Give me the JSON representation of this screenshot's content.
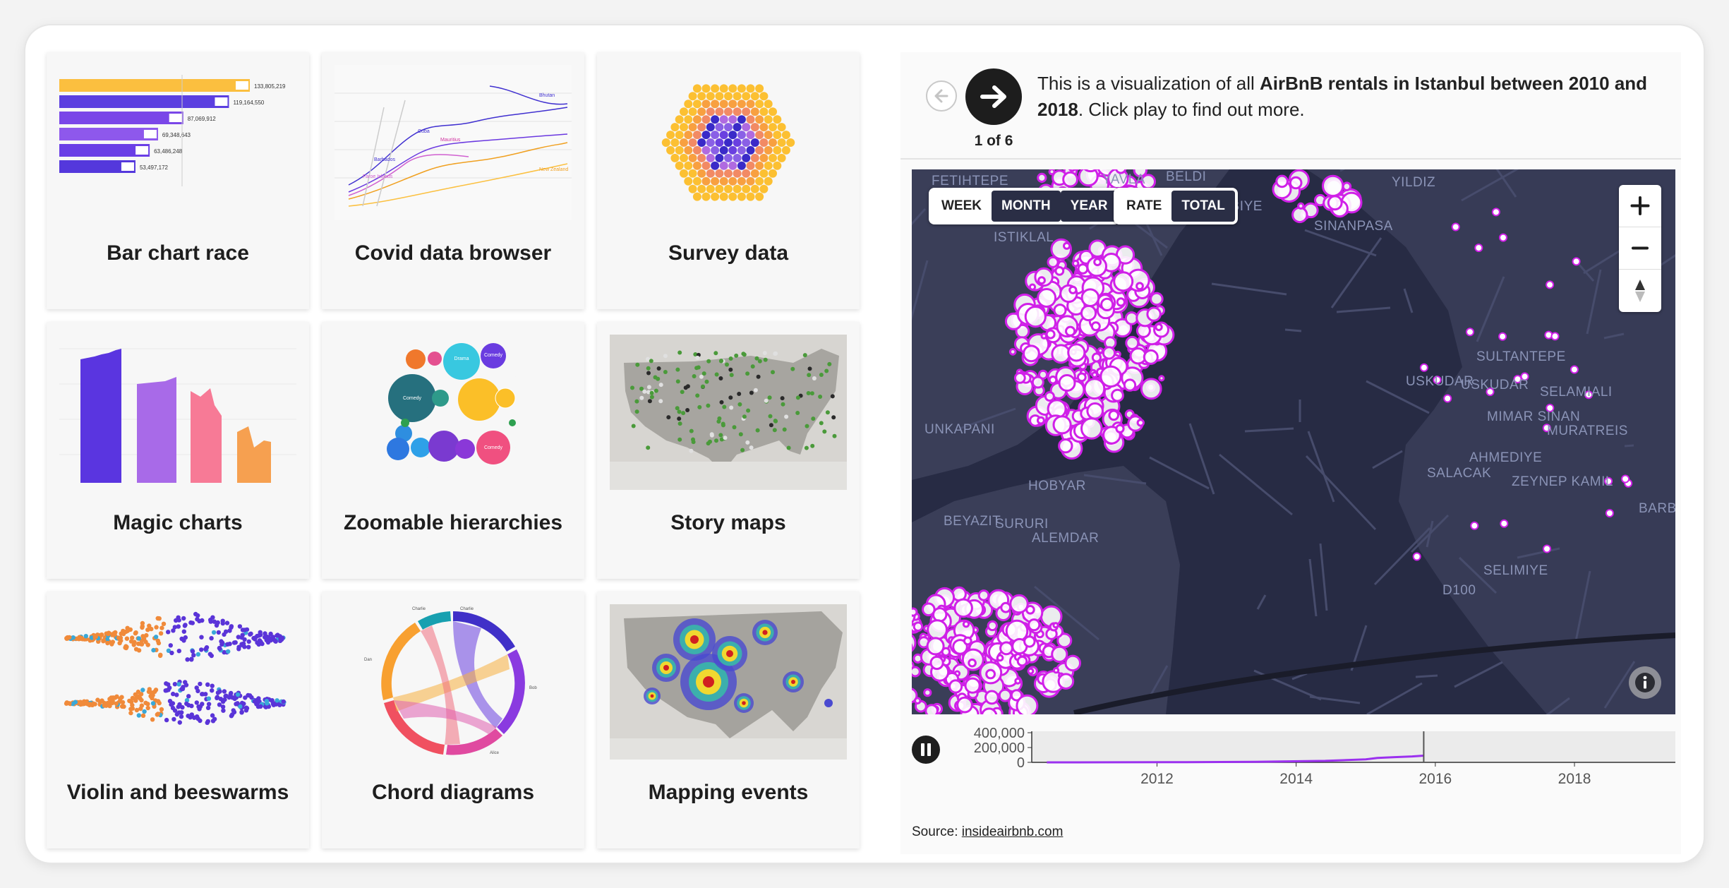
{
  "gallery": [
    {
      "title": "Bar chart race"
    },
    {
      "title": "Covid data browser"
    },
    {
      "title": "Survey data"
    },
    {
      "title": "Magic charts"
    },
    {
      "title": "Zoomable hierarchies"
    },
    {
      "title": "Story maps"
    },
    {
      "title": "Violin and beeswarms"
    },
    {
      "title": "Chord diagrams"
    },
    {
      "title": "Mapping events"
    }
  ],
  "bar_race": {
    "values": [
      133805219,
      119164550,
      87069912,
      69348643,
      63486248,
      53497172
    ],
    "labels": [
      "133,805,219",
      "119,164,550",
      "87,069,912",
      "69,348,643",
      "63,486,248",
      "53,497,172"
    ],
    "colors": [
      "#fbbf3f",
      "#5b3fe0",
      "#7a46e8",
      "#8e58ec",
      "#6a3fe6",
      "#5438dc"
    ]
  },
  "covid_labels": [
    "Cuba",
    "Mauritius",
    "Bhutan",
    "Barbados",
    "Faroe Islands",
    "New Zealand"
  ],
  "bubble_labels": [
    "Drama",
    "Comedy",
    "Comedy",
    "Comedy"
  ],
  "chord_labels": [
    "Charlie",
    "Charlie",
    "Bob",
    "Alice",
    "Dan"
  ],
  "story": {
    "counter": "1 of 6",
    "intro_before": "This is a visualization of all ",
    "intro_bold": "AirBnB rentals in Istanbul between 2010 and 2018",
    "intro_after": ". Click play to find out more."
  },
  "map": {
    "period_options": [
      "WEEK",
      "MONTH",
      "YEAR"
    ],
    "period_selected": "MONTH",
    "metric_options": [
      "RATE",
      "TOTAL"
    ],
    "metric_selected": "TOTAL",
    "zoom_in": "+",
    "zoom_out": "−",
    "place_labels": [
      "FETIHTEPE",
      "YAVLA",
      "BELDI",
      "YILDIZ",
      "ISTIKLAL",
      "HARBIYE",
      "SINANPASA",
      "UNKAPANI",
      "SULTANTEPE",
      "USKUDAR",
      "USKUDAR",
      "SELAMIALI",
      "MIMAR SINAN",
      "MURATREIS",
      "AHMEDIYE",
      "SALACAK",
      "ZEYNEP KAMIL",
      "HOBYAR",
      "SURURI",
      "BEYAZIT",
      "ALEMDAR",
      "BARB",
      "SELIMIYE",
      "D100"
    ]
  },
  "timeline": {
    "y_ticks": [
      "400,000",
      "200,000",
      "0"
    ],
    "x_ticks": [
      "2012",
      "2014",
      "2016",
      "2018"
    ]
  },
  "source": {
    "prefix": "Source: ",
    "link": "insideairbnb.com"
  },
  "chart_data": {
    "type": "line",
    "title": "",
    "xlabel": "",
    "ylabel": "",
    "x_ticks": [
      "2012",
      "2014",
      "2016",
      "2018"
    ],
    "ylim": [
      0,
      400000
    ],
    "y_ticks": [
      0,
      200000,
      400000
    ],
    "series": [
      {
        "x": [
          "2010-06",
          "2011-06",
          "2012-06",
          "2013-06",
          "2014-06",
          "2015-01",
          "2015-03",
          "2015-06",
          "2015-09",
          "2015-11"
        ],
        "values": [
          0,
          1000,
          3000,
          8000,
          20000,
          40000,
          60000,
          70000,
          80000,
          90000
        ]
      }
    ],
    "cursor_x": "2015-11",
    "colors": {
      "line": "#9b30ef",
      "cursor": "#555555"
    }
  }
}
